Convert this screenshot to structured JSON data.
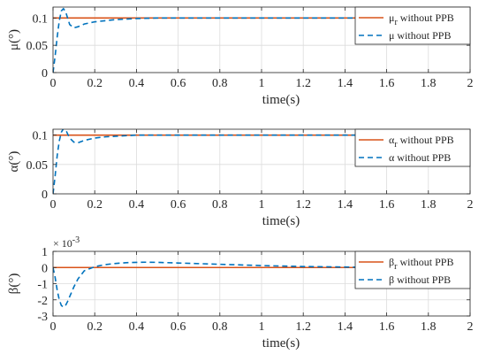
{
  "chart_data": [
    {
      "type": "line",
      "xlabel": "time(s)",
      "ylabel": "μ(°)",
      "xlim": [
        0,
        2
      ],
      "ylim": [
        0,
        0.12
      ],
      "xticks": [
        "0",
        "0.2",
        "0.4",
        "0.6",
        "0.8",
        "1",
        "1.2",
        "1.4",
        "1.6",
        "1.8",
        "2"
      ],
      "yticks": [
        "0",
        "0.05",
        "0.1"
      ],
      "ytick_values": [
        0,
        0.05,
        0.1
      ],
      "legend_position": "top-right",
      "series": [
        {
          "name": "μ",
          "subscript": "r",
          "suffix": " without PPB",
          "color": "#d95319",
          "style": "solid",
          "x": [
            0,
            2
          ],
          "y": [
            0.1,
            0.1
          ]
        },
        {
          "name": "μ without PPB",
          "color": "#0072bd",
          "style": "dashed",
          "x": [
            0,
            0.01,
            0.02,
            0.03,
            0.04,
            0.05,
            0.06,
            0.07,
            0.08,
            0.1,
            0.12,
            0.15,
            0.2,
            0.25,
            0.3,
            0.4,
            0.5,
            0.6,
            0.8,
            1.0,
            1.5,
            2.0
          ],
          "y": [
            0,
            0.03,
            0.065,
            0.095,
            0.113,
            0.117,
            0.112,
            0.1,
            0.088,
            0.082,
            0.084,
            0.089,
            0.093,
            0.095,
            0.097,
            0.099,
            0.1,
            0.1,
            0.1,
            0.1,
            0.1,
            0.1
          ]
        }
      ]
    },
    {
      "type": "line",
      "xlabel": "time(s)",
      "ylabel": "α(°)",
      "xlim": [
        0,
        2
      ],
      "ylim": [
        0,
        0.11
      ],
      "xticks": [
        "0",
        "0.2",
        "0.4",
        "0.6",
        "0.8",
        "1",
        "1.2",
        "1.4",
        "1.6",
        "1.8",
        "2"
      ],
      "yticks": [
        "0",
        "0.05",
        "0.1"
      ],
      "ytick_values": [
        0,
        0.05,
        0.1
      ],
      "legend_position": "top-right",
      "series": [
        {
          "name": "α",
          "subscript": "r",
          "suffix": " without PPB",
          "color": "#d95319",
          "style": "solid",
          "x": [
            0,
            2
          ],
          "y": [
            0.1,
            0.1
          ]
        },
        {
          "name": "α without PPB",
          "color": "#0072bd",
          "style": "dashed",
          "x": [
            0,
            0.01,
            0.02,
            0.03,
            0.04,
            0.05,
            0.06,
            0.07,
            0.08,
            0.1,
            0.12,
            0.15,
            0.2,
            0.25,
            0.3,
            0.4,
            0.5,
            0.6,
            0.8,
            1.0,
            1.5,
            2.0
          ],
          "y": [
            0,
            0.03,
            0.065,
            0.09,
            0.105,
            0.111,
            0.11,
            0.102,
            0.095,
            0.088,
            0.087,
            0.091,
            0.095,
            0.097,
            0.098,
            0.1,
            0.1,
            0.1,
            0.1,
            0.1,
            0.1,
            0.1
          ]
        }
      ]
    },
    {
      "type": "line",
      "xlabel": "time(s)",
      "ylabel": "β(°)",
      "exponent": "× 10",
      "exponent_power": "-3",
      "xlim": [
        0,
        2
      ],
      "ylim": [
        -3,
        1
      ],
      "xticks": [
        "0",
        "0.2",
        "0.4",
        "0.6",
        "0.8",
        "1",
        "1.2",
        "1.4",
        "1.6",
        "1.8",
        "2"
      ],
      "yticks": [
        "-3",
        "-2",
        "-1",
        "0",
        "1"
      ],
      "ytick_values": [
        -3,
        -2,
        -1,
        0,
        1
      ],
      "legend_position": "top-right",
      "series": [
        {
          "name": "β",
          "subscript": "r",
          "suffix": " without PPB",
          "color": "#d95319",
          "style": "solid",
          "x": [
            0,
            2
          ],
          "y": [
            0,
            0
          ]
        },
        {
          "name": "β without PPB",
          "color": "#0072bd",
          "style": "dashed",
          "x": [
            0,
            0.01,
            0.02,
            0.03,
            0.04,
            0.05,
            0.06,
            0.07,
            0.08,
            0.1,
            0.12,
            0.15,
            0.2,
            0.25,
            0.3,
            0.35,
            0.4,
            0.45,
            0.5,
            0.6,
            0.8,
            1.0,
            1.2,
            1.4,
            1.6,
            1.8,
            2.0
          ],
          "y": [
            0,
            -0.6,
            -1.4,
            -2.0,
            -2.35,
            -2.45,
            -2.35,
            -2.1,
            -1.8,
            -1.2,
            -0.7,
            -0.2,
            0.05,
            0.18,
            0.25,
            0.3,
            0.32,
            0.33,
            0.32,
            0.28,
            0.2,
            0.12,
            0.06,
            0.03,
            0.01,
            0.0,
            0.0
          ]
        }
      ]
    }
  ]
}
